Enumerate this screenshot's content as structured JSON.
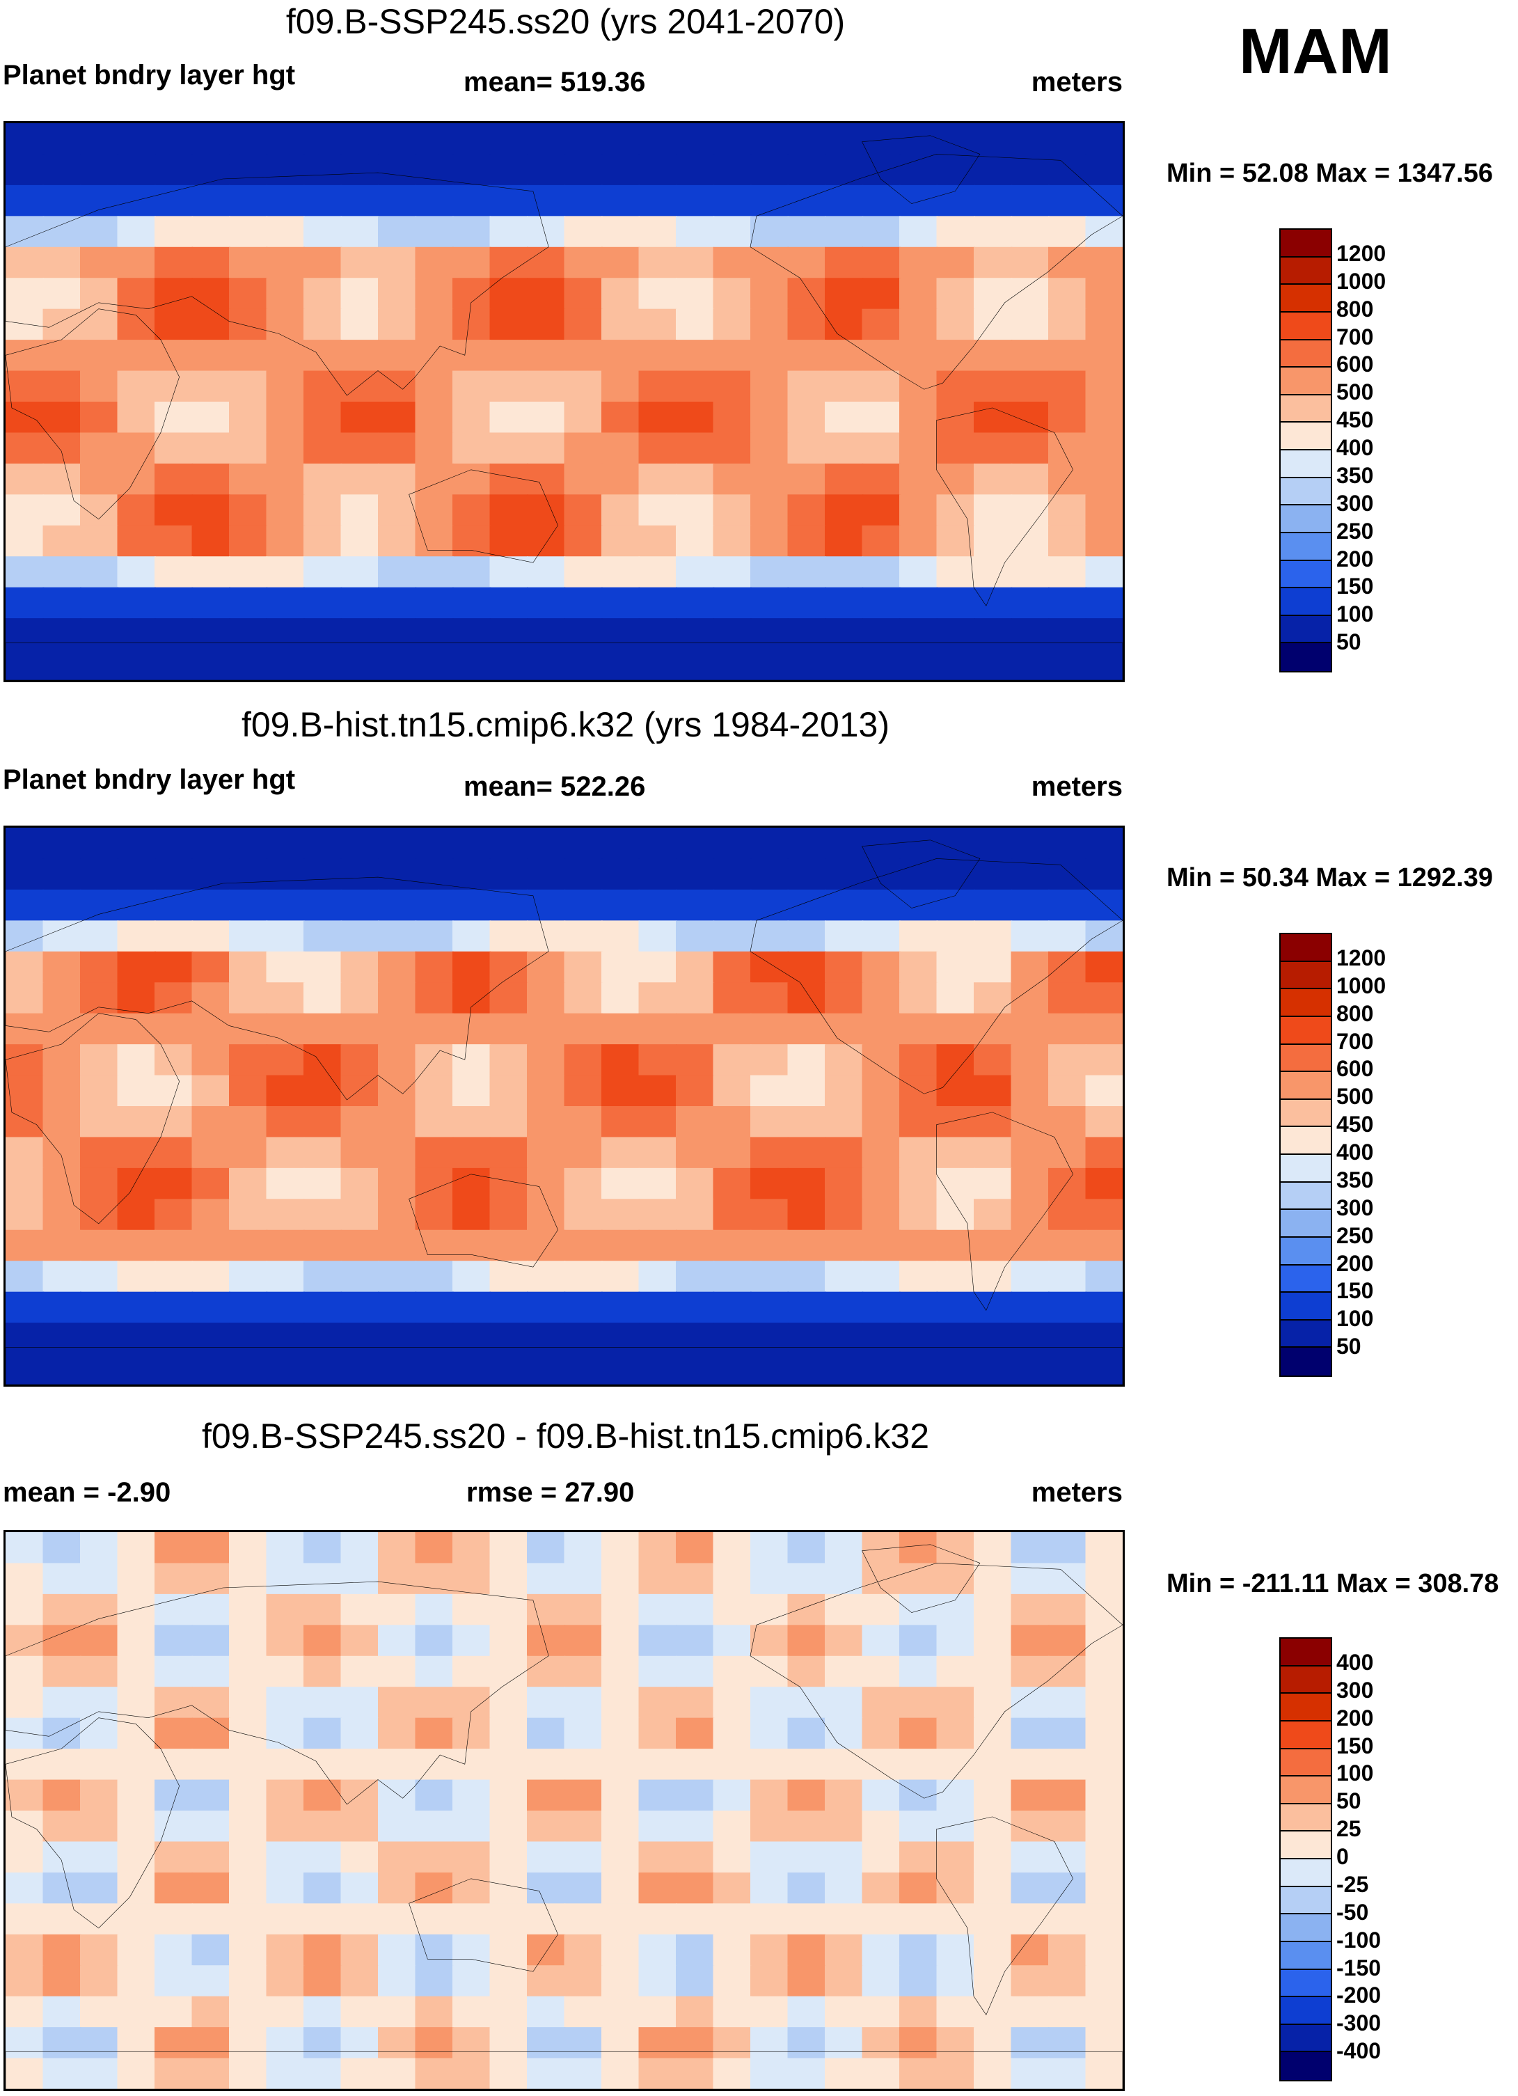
{
  "season": "MAM",
  "panels": [
    {
      "title": "f09.B-SSP245.ss20 (yrs 2041-2070)",
      "left_label": "Planet bndry layer hgt",
      "center_label": "mean= 519.36",
      "right_label": "meters",
      "minmax": "Min =  52.08 Max = 1347.56",
      "mode": "abs",
      "variant": 1
    },
    {
      "title": "f09.B-hist.tn15.cmip6.k32 (yrs 1984-2013)",
      "left_label": "Planet bndry layer hgt",
      "center_label": "mean= 522.26",
      "right_label": "meters",
      "minmax": "Min =  50.34 Max = 1292.39",
      "mode": "abs",
      "variant": 2
    },
    {
      "title": "f09.B-SSP245.ss20 - f09.B-hist.tn15.cmip6.k32",
      "left_label": "mean =  -2.90",
      "center_label": "rmse =  27.90",
      "right_label": "meters",
      "minmax": "Min = -211.11 Max = 308.78",
      "mode": "diff",
      "variant": 3
    }
  ],
  "colorbars": {
    "abs": {
      "labels": [
        "1200",
        "1000",
        "800",
        "700",
        "600",
        "500",
        "450",
        "400",
        "350",
        "300",
        "250",
        "200",
        "150",
        "100",
        "50"
      ],
      "colors": [
        "#8b0000",
        "#b71c00",
        "#d63000",
        "#ef4a1a",
        "#f46d3f",
        "#f8966a",
        "#fbbf9e",
        "#fde7d6",
        "#dbe9f9",
        "#b5cff5",
        "#8bb2f1",
        "#5a8ff0",
        "#2b63ec",
        "#0e3ed2",
        "#0622a8",
        "#00006e"
      ]
    },
    "diff": {
      "labels": [
        "400",
        "300",
        "200",
        "150",
        "100",
        "50",
        "25",
        "0",
        "-25",
        "-50",
        "-100",
        "-150",
        "-200",
        "-300",
        "-400"
      ],
      "colors": [
        "#8b0000",
        "#b71c00",
        "#d63000",
        "#ef4a1a",
        "#f46d3f",
        "#f8966a",
        "#fbbf9e",
        "#fde7d6",
        "#dbe9f9",
        "#b5cff5",
        "#8bb2f1",
        "#5a8ff0",
        "#2b63ec",
        "#0e3ed2",
        "#0622a8",
        "#00006e"
      ]
    }
  }
}
